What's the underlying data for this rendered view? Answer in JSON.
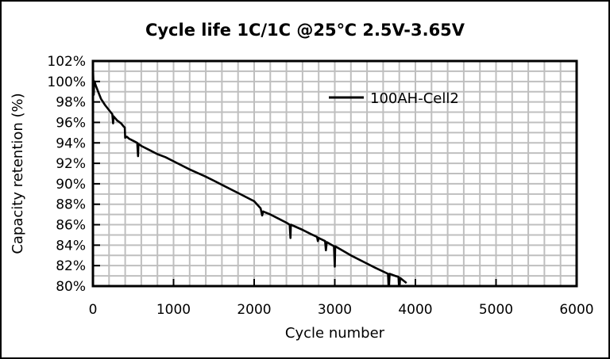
{
  "chart_data": {
    "type": "line",
    "title": "Cycle life  1C/1C @25℃  2.5V-3.65V",
    "xlabel": "Cycle number",
    "ylabel": "Capacity retention (%)",
    "xlim": [
      0,
      6000
    ],
    "ylim": [
      80,
      102
    ],
    "x_ticks": [
      0,
      1000,
      2000,
      3000,
      4000,
      5000,
      6000
    ],
    "x_tick_labels": [
      "0",
      "1000",
      "2000",
      "3000",
      "4000",
      "5000",
      "6000"
    ],
    "y_ticks": [
      80,
      82,
      84,
      86,
      88,
      90,
      92,
      94,
      96,
      98,
      100,
      102
    ],
    "y_tick_labels": [
      "80%",
      "82%",
      "84%",
      "86%",
      "88%",
      "90%",
      "92%",
      "94%",
      "96%",
      "98%",
      "100%",
      "102%"
    ],
    "grid": true,
    "x_minor_step": 200,
    "y_minor_step": 1,
    "legend": {
      "position": "top-right",
      "entries": [
        "100AH-Cell2"
      ]
    },
    "series": [
      {
        "name": "100AH-Cell2",
        "color": "#000000",
        "points": [
          [
            0,
            101.5
          ],
          [
            8,
            99.5
          ],
          [
            10,
            98.7
          ],
          [
            14,
            99.6
          ],
          [
            20,
            100.0
          ],
          [
            35,
            99.6
          ],
          [
            50,
            99.3
          ],
          [
            75,
            98.8
          ],
          [
            100,
            98.3
          ],
          [
            150,
            97.7
          ],
          [
            200,
            97.2
          ],
          [
            240,
            96.8
          ],
          [
            250,
            95.9
          ],
          [
            255,
            96.6
          ],
          [
            300,
            96.2
          ],
          [
            350,
            95.9
          ],
          [
            380,
            95.6
          ],
          [
            395,
            95.5
          ],
          [
            400,
            94.5
          ],
          [
            420,
            94.6
          ],
          [
            450,
            94.4
          ],
          [
            500,
            94.2
          ],
          [
            550,
            94.0
          ],
          [
            560,
            92.7
          ],
          [
            565,
            93.9
          ],
          [
            600,
            93.7
          ],
          [
            700,
            93.3
          ],
          [
            800,
            92.9
          ],
          [
            900,
            92.6
          ],
          [
            1000,
            92.2
          ],
          [
            1200,
            91.4
          ],
          [
            1400,
            90.7
          ],
          [
            1500,
            90.3
          ],
          [
            1600,
            89.9
          ],
          [
            1800,
            89.1
          ],
          [
            2000,
            88.3
          ],
          [
            2080,
            87.6
          ],
          [
            2100,
            86.9
          ],
          [
            2110,
            87.3
          ],
          [
            2200,
            87.0
          ],
          [
            2300,
            86.6
          ],
          [
            2400,
            86.2
          ],
          [
            2440,
            86.0
          ],
          [
            2450,
            84.7
          ],
          [
            2455,
            86.0
          ],
          [
            2600,
            85.5
          ],
          [
            2700,
            85.1
          ],
          [
            2780,
            84.8
          ],
          [
            2790,
            84.4
          ],
          [
            2800,
            84.7
          ],
          [
            2880,
            84.4
          ],
          [
            2890,
            83.5
          ],
          [
            2900,
            84.3
          ],
          [
            2990,
            83.9
          ],
          [
            3000,
            81.9
          ],
          [
            3005,
            83.9
          ],
          [
            3200,
            83.0
          ],
          [
            3400,
            82.2
          ],
          [
            3500,
            81.8
          ],
          [
            3660,
            81.2
          ],
          [
            3670,
            79.5
          ],
          [
            3680,
            81.2
          ],
          [
            3750,
            81.0
          ],
          [
            3790,
            80.9
          ],
          [
            3800,
            79.5
          ],
          [
            3810,
            80.8
          ],
          [
            3890,
            80.3
          ]
        ]
      }
    ]
  }
}
